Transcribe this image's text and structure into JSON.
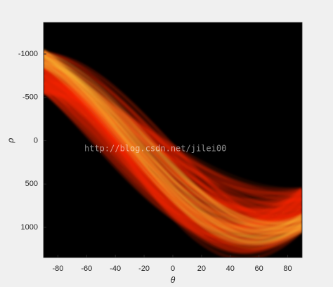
{
  "chart_data": {
    "type": "image",
    "xlabel": "θ",
    "ylabel": "ρ",
    "xlim": [
      -90,
      90
    ],
    "ylim": [
      -1364,
      1348
    ],
    "xticks": [
      -80,
      -60,
      -40,
      -20,
      0,
      20,
      40,
      60,
      80
    ],
    "yticks": [
      -1000,
      -500,
      0,
      500,
      1000
    ],
    "background": "#000000",
    "watermark": "http://blog.csdn.net/jilei00"
  }
}
